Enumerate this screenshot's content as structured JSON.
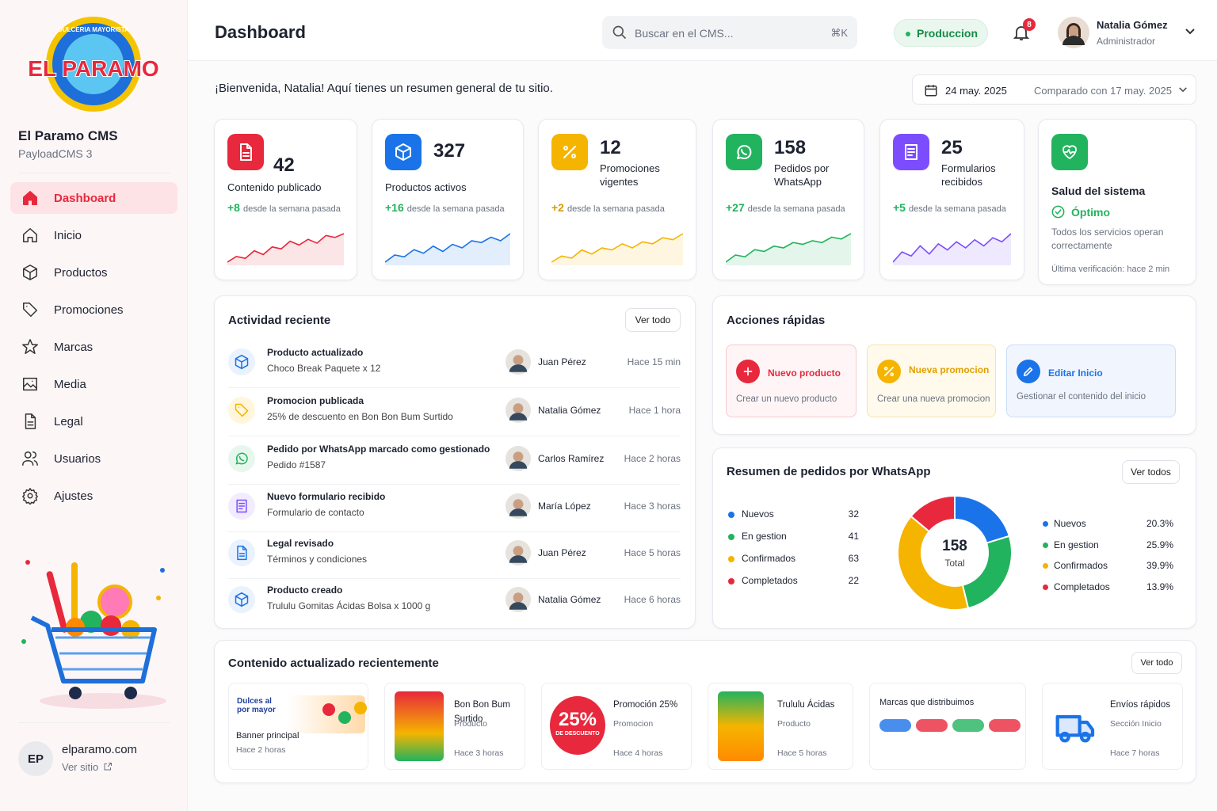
{
  "logo": {
    "name": "EL PARAMO",
    "tagline": "DULCERIA MAYORISTA"
  },
  "sidebar": {
    "brand": "El Paramo CMS",
    "subtitle": "PayloadCMS 3",
    "nav": [
      "Dashboard",
      "Inicio",
      "Productos",
      "Promociones",
      "Marcas",
      "Media",
      "Legal",
      "Usuarios",
      "Ajustes"
    ],
    "footer": {
      "initials": "EP",
      "site": "elparamo.com",
      "link": "Ver sitio"
    }
  },
  "header": {
    "title": "Dashboard",
    "search": "Buscar en el CMS...",
    "shortcut": "⌘K",
    "env": "Produccion",
    "notifications": 8,
    "user": {
      "name": "Natalia Gómez",
      "role": "Administrador"
    }
  },
  "welcome": "¡Bienvenida, Natalia! Aquí tienes un resumen general de tu sitio.",
  "date": {
    "current": "24 may. 2025",
    "compare": "Comparado con 17 may. 2025"
  },
  "stats": [
    {
      "value": 42,
      "label": "Contenido publicado",
      "delta": "+8",
      "delta_text": "desde la semana pasada",
      "color": "#e8283c",
      "trend": [
        3,
        6,
        5,
        9,
        7,
        11,
        10,
        14,
        12,
        15,
        13,
        17,
        16,
        18
      ]
    },
    {
      "value": 327,
      "label": "Productos activos",
      "delta": "+16",
      "delta_text": "desde la semana pasada",
      "color": "#1a73e8",
      "trend": [
        3,
        7,
        6,
        10,
        8,
        12,
        9,
        13,
        11,
        15,
        14,
        17,
        15,
        19
      ]
    },
    {
      "value": 12,
      "label": "Promociones vigentes",
      "delta": "+2",
      "delta_text": "desde la semana pasada",
      "color": "#f5b400",
      "trend": [
        2,
        5,
        4,
        8,
        6,
        9,
        8,
        11,
        9,
        12,
        11,
        14,
        13,
        16
      ]
    },
    {
      "value": 158,
      "label": "Pedidos por WhatsApp",
      "delta": "+27",
      "delta_text": "desde la semana pasada",
      "color": "#22b35e",
      "trend": [
        2,
        6,
        5,
        9,
        8,
        11,
        10,
        13,
        12,
        14,
        13,
        16,
        15,
        18
      ]
    },
    {
      "value": 25,
      "label": "Formularios recibidos",
      "delta": "+5",
      "delta_text": "desde la semana pasada",
      "color": "#7c4dff",
      "trend": [
        3,
        8,
        6,
        11,
        7,
        12,
        9,
        13,
        10,
        14,
        11,
        15,
        13,
        17
      ]
    }
  ],
  "health": {
    "title": "Salud del sistema",
    "status": "Óptimo",
    "text": "Todos los servicios operan correctamente",
    "checked": "Última verificación: hace 2 min"
  },
  "activity": {
    "title": "Actividad reciente",
    "button": "Ver todo",
    "items": [
      {
        "title": "Producto actualizado",
        "detail": "Choco Break Paquete x 12",
        "user": "Juan Pérez",
        "time": "Hace 15 min"
      },
      {
        "title": "Promocion publicada",
        "detail": "25% de descuento en Bon Bon Bum Surtido",
        "user": "Natalia Gómez",
        "time": "Hace 1 hora"
      },
      {
        "title": "Pedido por WhatsApp marcado como gestionado",
        "detail": "Pedido #1587",
        "user": "Carlos Ramírez",
        "time": "Hace 2 horas"
      },
      {
        "title": "Nuevo formulario recibido",
        "detail": "Formulario de contacto",
        "user": "María López",
        "time": "Hace 3 horas"
      },
      {
        "title": "Legal revisado",
        "detail": "Términos y condiciones",
        "user": "Juan Pérez",
        "time": "Hace 5 horas"
      },
      {
        "title": "Producto creado",
        "detail": "Trululu Gomitas Ácidas Bolsa x 1000 g",
        "user": "Natalia Gómez",
        "time": "Hace 6 horas"
      }
    ]
  },
  "quick_actions": {
    "title": "Acciones rápidas",
    "items": [
      {
        "title": "Nuevo producto",
        "text": "Crear un nuevo producto"
      },
      {
        "title": "Nueva promocion",
        "text": "Crear una nueva promocion"
      },
      {
        "title": "Editar Inicio",
        "text": "Gestionar el contenido del inicio"
      }
    ]
  },
  "chart_data": {
    "type": "donut",
    "title": "Resumen de pedidos por WhatsApp",
    "button": "Ver todos",
    "categories": [
      "Nuevos",
      "En gestion",
      "Confirmados",
      "Completados"
    ],
    "values": [
      32,
      41,
      63,
      22
    ],
    "percent_labels": [
      "20.3%",
      "25.9%",
      "39.9%",
      "13.9%"
    ],
    "colors": [
      "#1a73e8",
      "#22b35e",
      "#f5b400",
      "#e8283c"
    ],
    "total": 158,
    "total_label": "Total"
  },
  "recent": {
    "title": "Contenido actualizado recientemente",
    "button": "Ver todo",
    "items": [
      {
        "thumb_text": "Dulces al por mayor",
        "title": "Banner principal",
        "time": "Hace 2 horas"
      },
      {
        "title": "Bon Bon Bum Surtido",
        "kind": "Producto",
        "time": "Hace 3 horas"
      },
      {
        "thumb_text": "25%",
        "thumb_sub": "DE DESCUENTO",
        "title": "Promoción 25%",
        "kind": "Promocion",
        "time": "Hace 4 horas"
      },
      {
        "title": "Trululu Ácidas",
        "kind": "Producto",
        "time": "Hace 5 horas"
      },
      {
        "title": "Marcas que distribuimos"
      },
      {
        "title": "Envíos rápidos",
        "kind": "Sección Inicio",
        "time": "Hace 7 horas"
      }
    ]
  }
}
